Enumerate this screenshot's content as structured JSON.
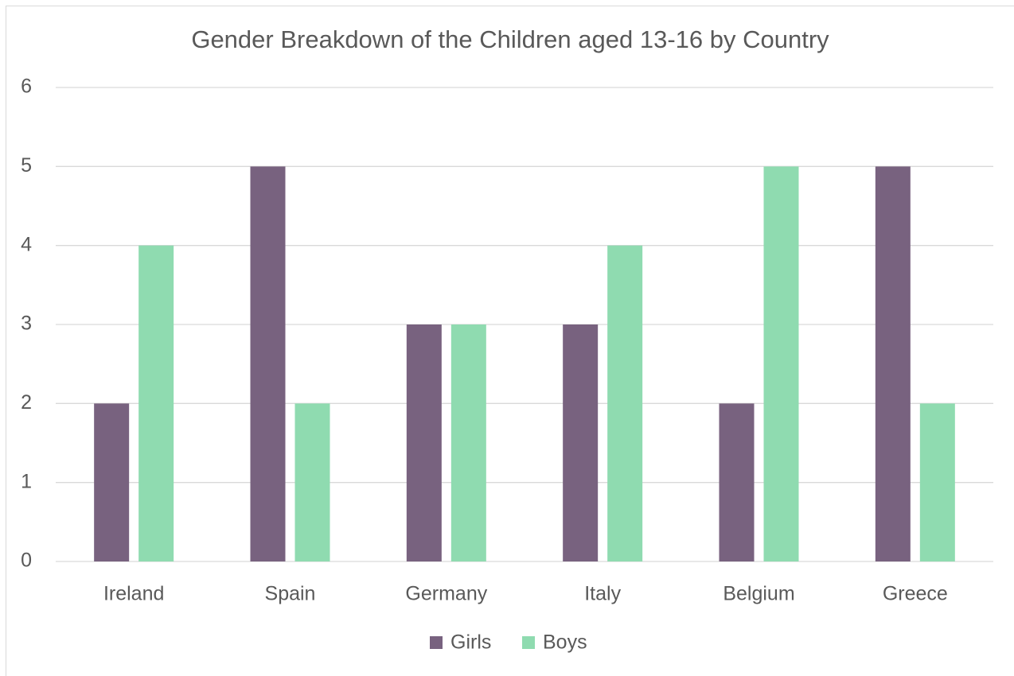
{
  "chart_data": {
    "type": "bar",
    "title": "Gender Breakdown of the Children aged 13-16 by Country",
    "categories": [
      "Ireland",
      "Spain",
      "Germany",
      "Italy",
      "Belgium",
      "Greece"
    ],
    "series": [
      {
        "name": "Girls",
        "color": "#78627f",
        "values": [
          2,
          5,
          3,
          3,
          2,
          5
        ]
      },
      {
        "name": "Boys",
        "color": "#8fdbb0",
        "values": [
          4,
          2,
          3,
          4,
          5,
          2
        ]
      }
    ],
    "ylim": [
      0,
      6
    ],
    "yticks": [
      0,
      1,
      2,
      3,
      4,
      5,
      6
    ],
    "grid": true,
    "legend": "bottom"
  }
}
